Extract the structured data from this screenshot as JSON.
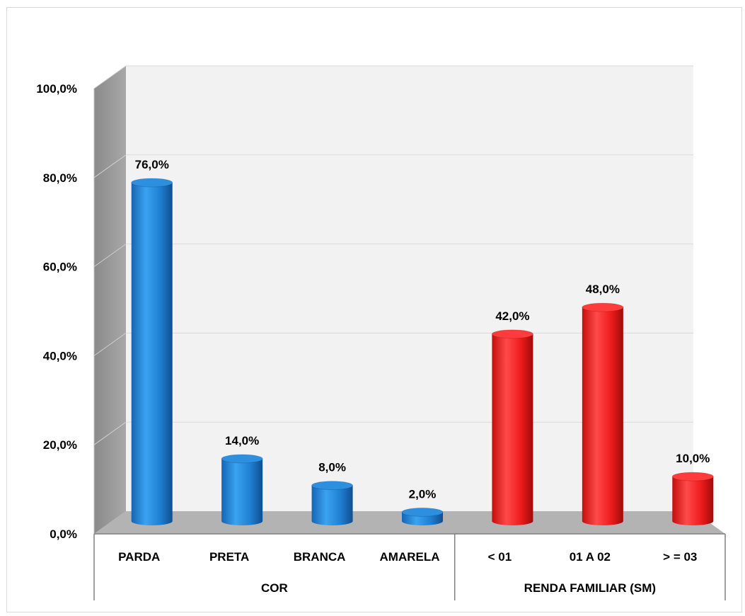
{
  "chart_data": {
    "type": "bar",
    "style": "3d-cylinder",
    "title": "",
    "xlabel": "",
    "ylabel": "",
    "ylim": [
      0,
      100
    ],
    "y_ticks": [
      "0,0%",
      "20,0%",
      "40,0%",
      "60,0%",
      "80,0%",
      "100,0%"
    ],
    "y_tick_values": [
      0,
      20,
      40,
      60,
      80,
      100
    ],
    "grid": true,
    "legend": "none",
    "groups": [
      {
        "name": "COR",
        "color": "#1f7fd1",
        "categories": [
          "PARDA",
          "PRETA",
          "BRANCA",
          "AMARELA"
        ],
        "values": [
          76.0,
          14.0,
          8.0,
          2.0
        ],
        "labels": [
          "76,0%",
          "14,0%",
          "8,0%",
          "2,0%"
        ]
      },
      {
        "name": "RENDA FAMILIAR (SM)",
        "color": "#ee1c1c",
        "categories": [
          "< 01",
          "01 A 02",
          "> = 03"
        ],
        "values": [
          42.0,
          48.0,
          10.0
        ],
        "labels": [
          "42,0%",
          "48,0%",
          "10,0%"
        ]
      }
    ]
  }
}
